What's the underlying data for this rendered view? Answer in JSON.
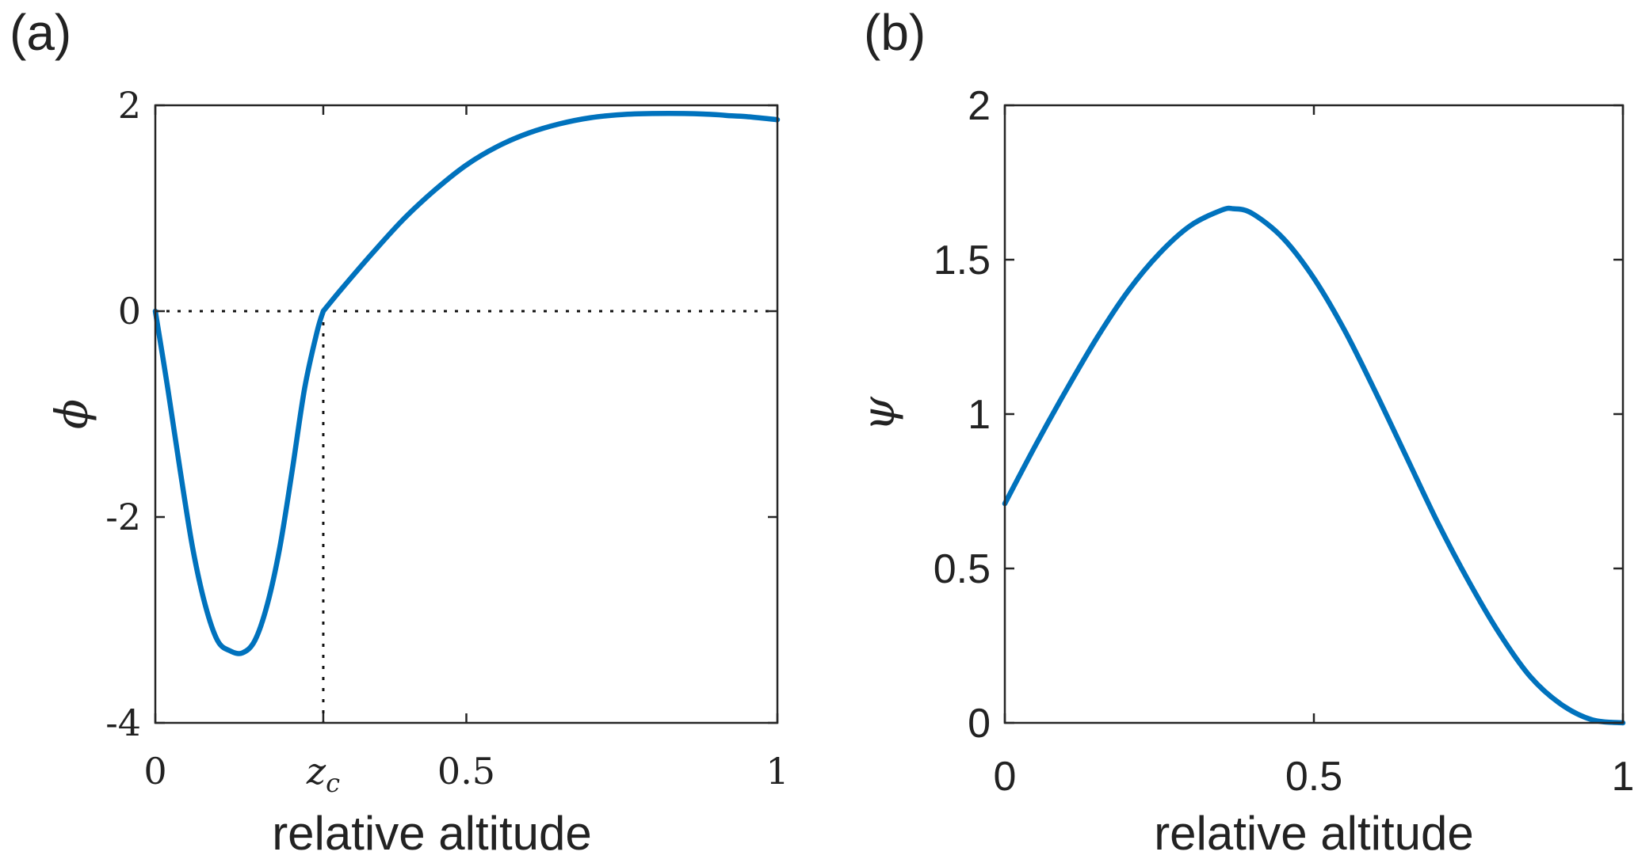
{
  "colors": {
    "curve": "#0072BD",
    "axes": "#262626",
    "text": "#222222"
  },
  "chart_data": [
    {
      "panel_label": "(a)",
      "type": "line",
      "xlabel": "relative altitude",
      "ylabel": "ϕ",
      "xlim": [
        0,
        1
      ],
      "ylim": [
        -4,
        2
      ],
      "xticks": [
        0,
        0.27,
        0.5,
        1
      ],
      "xtick_labels": [
        "0",
        "z",
        "0.5",
        "1"
      ],
      "xtick_subscript": "c",
      "yticks": [
        -4,
        -2,
        0,
        2
      ],
      "ytick_labels": [
        "-4",
        "-2",
        "0",
        "2"
      ],
      "zc": 0.27,
      "reference_lines": {
        "horizontal_y": 0,
        "vertical_x": 0.27,
        "style": "dotted"
      },
      "series": [
        {
          "name": "phi",
          "color": "#0072BD",
          "x": [
            0,
            0.02,
            0.04,
            0.06,
            0.08,
            0.1,
            0.12,
            0.14,
            0.16,
            0.18,
            0.2,
            0.22,
            0.24,
            0.26,
            0.27,
            0.3,
            0.35,
            0.4,
            0.45,
            0.5,
            0.55,
            0.6,
            0.65,
            0.7,
            0.75,
            0.8,
            0.85,
            0.9,
            0.92,
            0.95,
            1.0
          ],
          "y": [
            0,
            -0.75,
            -1.55,
            -2.3,
            -2.85,
            -3.2,
            -3.3,
            -3.32,
            -3.2,
            -2.85,
            -2.3,
            -1.55,
            -0.75,
            -0.2,
            0,
            0.22,
            0.57,
            0.9,
            1.18,
            1.42,
            1.6,
            1.73,
            1.82,
            1.88,
            1.91,
            1.92,
            1.92,
            1.91,
            1.9,
            1.89,
            1.86
          ]
        }
      ]
    },
    {
      "panel_label": "(b)",
      "type": "line",
      "xlabel": "relative altitude",
      "ylabel": "ψ",
      "xlim": [
        0,
        1
      ],
      "ylim": [
        0,
        2
      ],
      "xticks": [
        0,
        0.5,
        1
      ],
      "xtick_labels": [
        "0",
        "0.5",
        "1"
      ],
      "yticks": [
        0,
        0.5,
        1,
        1.5,
        2
      ],
      "ytick_labels": [
        "0",
        "0.5",
        "1",
        "1.5",
        "2"
      ],
      "series": [
        {
          "name": "psi",
          "color": "#0072BD",
          "x": [
            0,
            0.05,
            0.1,
            0.15,
            0.2,
            0.25,
            0.3,
            0.35,
            0.37,
            0.4,
            0.45,
            0.5,
            0.55,
            0.6,
            0.65,
            0.7,
            0.75,
            0.8,
            0.85,
            0.9,
            0.95,
            1.0
          ],
          "y": [
            0.71,
            0.9,
            1.08,
            1.25,
            1.4,
            1.52,
            1.61,
            1.66,
            1.665,
            1.65,
            1.57,
            1.44,
            1.27,
            1.07,
            0.86,
            0.65,
            0.46,
            0.29,
            0.15,
            0.06,
            0.01,
            0
          ]
        }
      ]
    }
  ]
}
